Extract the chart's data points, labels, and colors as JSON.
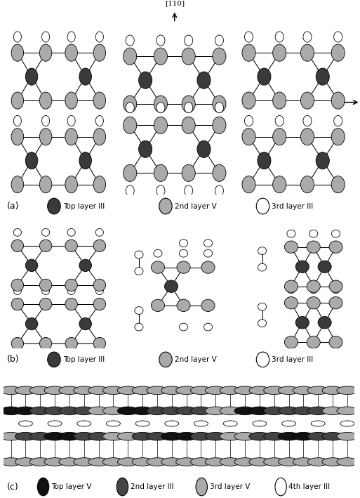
{
  "fig_width": 5.13,
  "fig_height": 7.09,
  "bg_color": "#ffffff",
  "colors": {
    "dark": "#3a3a3a",
    "mid": "#aaaaaa",
    "white": "#ffffff",
    "black": "#111111",
    "vdark": "#222222",
    "light_gray": "#bbbbbb"
  },
  "panel_a_legend": [
    {
      "label": "Top layer III",
      "color": "#3a3a3a",
      "fill": true
    },
    {
      "label": "2nd layer V",
      "color": "#aaaaaa",
      "fill": true
    },
    {
      "label": "3rd layer III",
      "color": "#ffffff",
      "fill": false
    }
  ],
  "panel_c_legend": [
    {
      "label": "Top layer V",
      "color": "#111111",
      "fill": true
    },
    {
      "label": "2nd layer III",
      "color": "#444444",
      "fill": true
    },
    {
      "label": "3rd layer V",
      "color": "#aaaaaa",
      "fill": true
    },
    {
      "label": "4th layer III",
      "color": "#ffffff",
      "fill": false
    }
  ]
}
